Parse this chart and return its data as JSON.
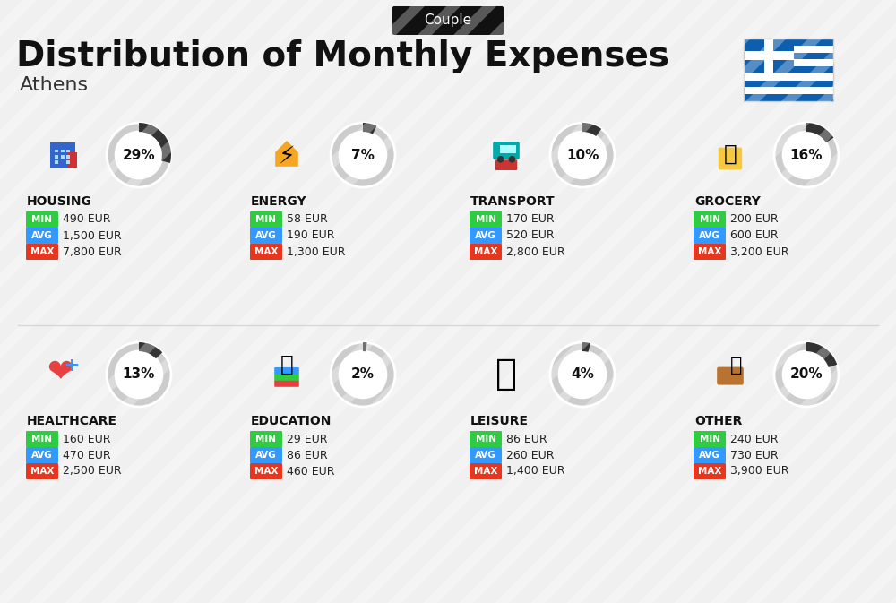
{
  "title": "Distribution of Monthly Expenses",
  "subtitle": "Athens",
  "header_tag": "Couple",
  "background_color": "#f0f0f0",
  "categories": [
    {
      "name": "HOUSING",
      "percent": 29,
      "min": "490 EUR",
      "avg": "1,500 EUR",
      "max": "7,800 EUR",
      "row": 0,
      "col": 0,
      "icon_color": "#2255aa",
      "donut_color": "#333333"
    },
    {
      "name": "ENERGY",
      "percent": 7,
      "min": "58 EUR",
      "avg": "190 EUR",
      "max": "1,300 EUR",
      "row": 0,
      "col": 1,
      "icon_color": "#f5a623",
      "donut_color": "#333333"
    },
    {
      "name": "TRANSPORT",
      "percent": 10,
      "min": "170 EUR",
      "avg": "520 EUR",
      "max": "2,800 EUR",
      "row": 0,
      "col": 2,
      "icon_color": "#00aaaa",
      "donut_color": "#333333"
    },
    {
      "name": "GROCERY",
      "percent": 16,
      "min": "200 EUR",
      "avg": "600 EUR",
      "max": "3,200 EUR",
      "row": 0,
      "col": 3,
      "icon_color": "#f5a623",
      "donut_color": "#333333"
    },
    {
      "name": "HEALTHCARE",
      "percent": 13,
      "min": "160 EUR",
      "avg": "470 EUR",
      "max": "2,500 EUR",
      "row": 1,
      "col": 0,
      "icon_color": "#e84040",
      "donut_color": "#333333"
    },
    {
      "name": "EDUCATION",
      "percent": 2,
      "min": "29 EUR",
      "avg": "86 EUR",
      "max": "460 EUR",
      "row": 1,
      "col": 1,
      "icon_color": "#555555",
      "donut_color": "#333333"
    },
    {
      "name": "LEISURE",
      "percent": 4,
      "min": "86 EUR",
      "avg": "260 EUR",
      "max": "1,400 EUR",
      "row": 1,
      "col": 2,
      "icon_color": "#e84040",
      "donut_color": "#333333"
    },
    {
      "name": "OTHER",
      "percent": 20,
      "min": "240 EUR",
      "avg": "730 EUR",
      "max": "3,900 EUR",
      "row": 1,
      "col": 3,
      "icon_color": "#b87333",
      "donut_color": "#333333"
    }
  ],
  "min_color": "#2ecc40",
  "avg_color": "#3399ff",
  "max_color": "#e8351e",
  "label_min": "MIN",
  "label_avg": "AVG",
  "label_max": "MAX"
}
